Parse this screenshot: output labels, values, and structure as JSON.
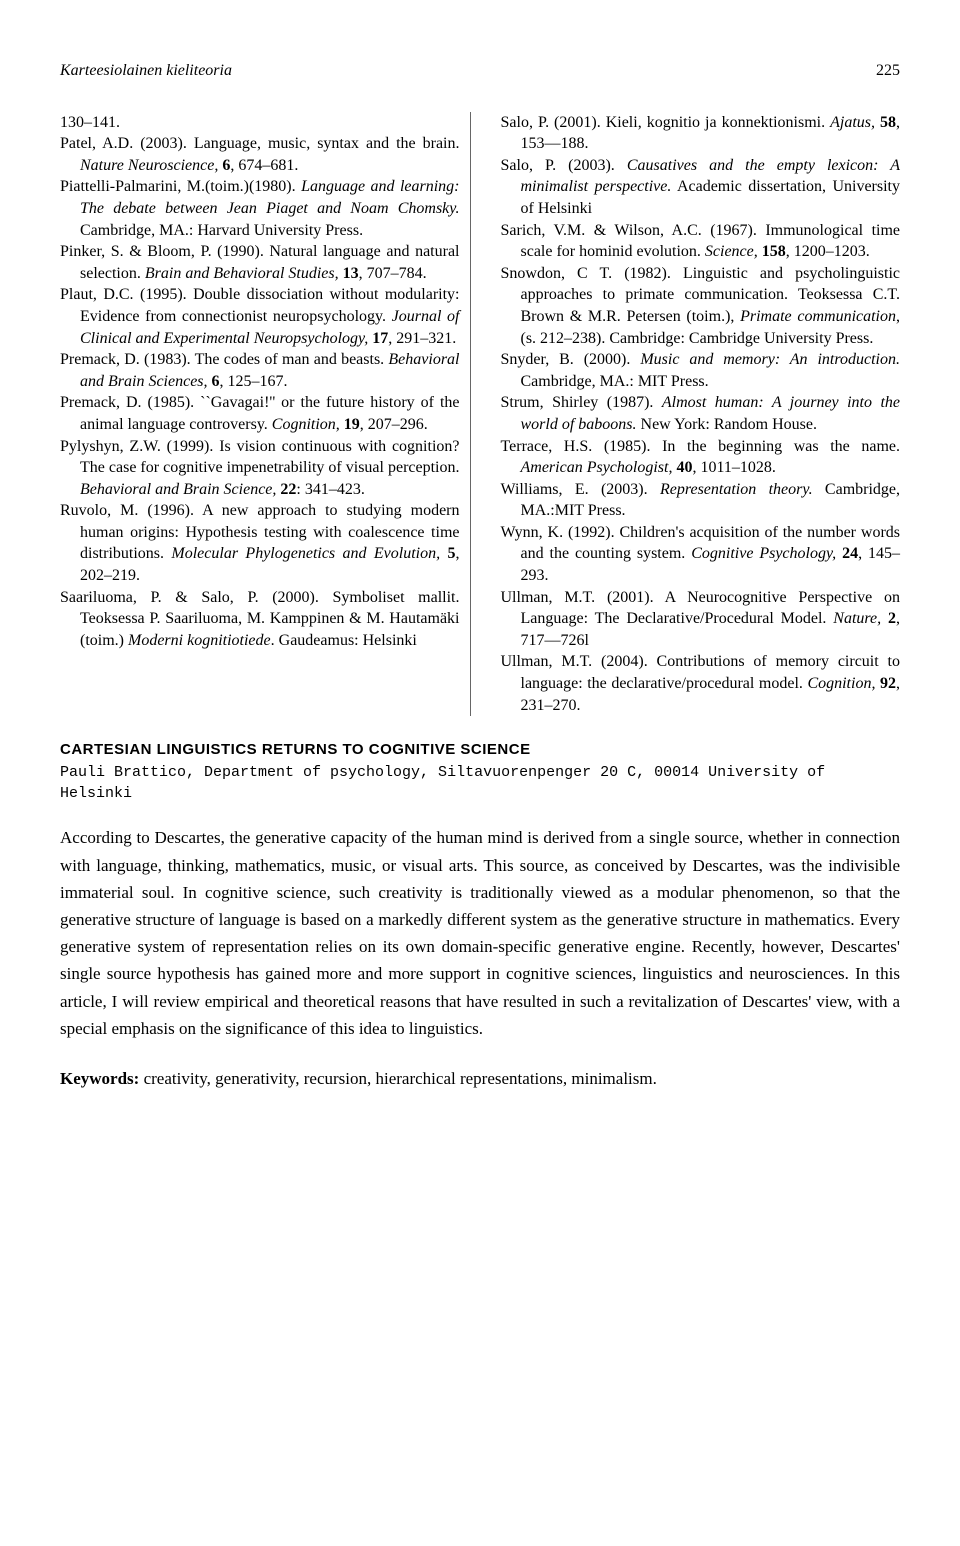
{
  "header": {
    "running_title": "Karteesiolainen kieliteoria",
    "page_number": "225"
  },
  "references_left": [
    {
      "text": "130–141."
    },
    {
      "text": "Patel, A.D. (2003). Language, music, syntax and the brain. <i>Nature Neuroscience,</i> <b>6</b>, 674–681."
    },
    {
      "text": "Piattelli-Palmarini, M.(toim.)(1980). <i>Language and learning: The debate between Jean Piaget and Noam Chomsky.</i> Cambridge, MA.: Harvard University Press."
    },
    {
      "text": "Pinker, S. & Bloom, P. (1990). Natural language and natural selection. <i>Brain and Behavioral Studies,</i> <b>13</b>, 707–784."
    },
    {
      "text": "Plaut, D.C. (1995). Double dissociation without modularity: Evidence from connectionist neuropsychology. <i>Journal of Clinical and Experimental Neuropsychology,</i> <b>17</b>, 291–321."
    },
    {
      "text": "Premack, D. (1983). The codes of man and beasts. <i>Behavioral and Brain Sciences,</i> <b>6</b>, 125–167."
    },
    {
      "text": "Premack, D. (1985). ``Gavagai!'' or the future history of the animal language controversy. <i>Cognition,</i> <b>19</b>, 207–296."
    },
    {
      "text": "Pylyshyn, Z.W. (1999). Is vision continuous with cognition? The case for cognitive impenetrability of visual perception. <i>Behavioral and Brain Science,</i> <b>22</b>: 341–423."
    },
    {
      "text": "Ruvolo, M. (1996). A new approach to studying modern human origins: Hypothesis testing with coalescence time distributions. <i>Molecular Phylogenetics and Evolution,</i> <b>5</b>, 202–219."
    },
    {
      "text": "Saariluoma, P. & Salo, P. (2000). Symboliset mallit. Teoksessa P. Saariluoma, M. Kamppinen & M. Hautamäki (toim.) <i>Moderni kognitiotiede</i>. Gaudeamus: Helsinki"
    }
  ],
  "references_right": [
    {
      "text": "Salo, P. (2001). Kieli, kognitio ja konnektionismi. <i>Ajatus,</i> <b>58</b>, 153—188."
    },
    {
      "text": "Salo, P. (2003). <i>Causatives and the empty lexicon: A minimalist perspective.</i> Academic dissertation, University of Helsinki"
    },
    {
      "text": "Sarich, V.M. & Wilson, A.C. (1967). Immunological time scale for hominid evolution. <i>Science,</i> <b>158</b>, 1200–1203."
    },
    {
      "text": "Snowdon, C T. (1982). Linguistic and psycholinguistic approaches to primate communication. Teoksessa C.T. Brown & M.R. Petersen (toim.), <i>Primate communication</i>, (s. 212–238). Cambridge: Cambridge University Press."
    },
    {
      "text": "Snyder, B. (2000). <i>Music and memory: An introduction.</i> Cambridge, MA.: MIT Press."
    },
    {
      "text": "Strum, Shirley (1987). <i>Almost human: A journey into the world of baboons.</i> New York: Random House."
    },
    {
      "text": "Terrace, H.S. (1985). In the beginning was the name. <i>American Psychologist,</i> <b>40</b>, 1011–1028."
    },
    {
      "text": "Williams, E. (2003). <i>Representation theory.</i> Cambridge, MA.:MIT Press."
    },
    {
      "text": "Wynn, K. (1992). Children's acquisition of the number words and the counting system. <i>Cognitive Psychology,</i> <b>24</b>, 145–293."
    },
    {
      "text": "Ullman, M.T. (2001). A Neurocognitive Perspective on Language: The Declarative/Procedural Model. <i>Nature,</i> <b>2</b>, 717—726l"
    },
    {
      "text": "Ullman, M.T. (2004). Contributions of memory circuit to language: the declarative/procedural model. <i>Cognition,</i> <b>92</b>, 231–270."
    }
  ],
  "section": {
    "title": "CARTESIAN LINGUISTICS RETURNS TO COGNITIVE SCIENCE",
    "author": "Pauli Brattico, Department of psychology, Siltavuorenpenger 20 C, 00014 University of Helsinki"
  },
  "abstract": "According to Descartes, the generative capacity of the human mind is derived from a single source, whether in connection with language, thinking, mathematics, music, or visual arts. This source, as conceived by Descartes, was the indivisible immaterial soul. In cognitive science, such creativity is traditionally viewed as a modular phenomenon, so that the generative structure of language is based on a markedly different system as the generative structure in mathematics. Every generative system of representation relies on its own domain-specific generative engine. Recently, however, Descartes' single source hypothesis has gained more and more support in cognitive sciences, linguistics and neurosciences. In this article, I will review empirical and theoretical reasons that have resulted in such a revitalization of Descartes' view, with a special emphasis on the significance of this idea to linguistics.",
  "keywords": {
    "label": "Keywords:",
    "text": " creativity, generativity, recursion, hierarchical representations, minimalism."
  }
}
